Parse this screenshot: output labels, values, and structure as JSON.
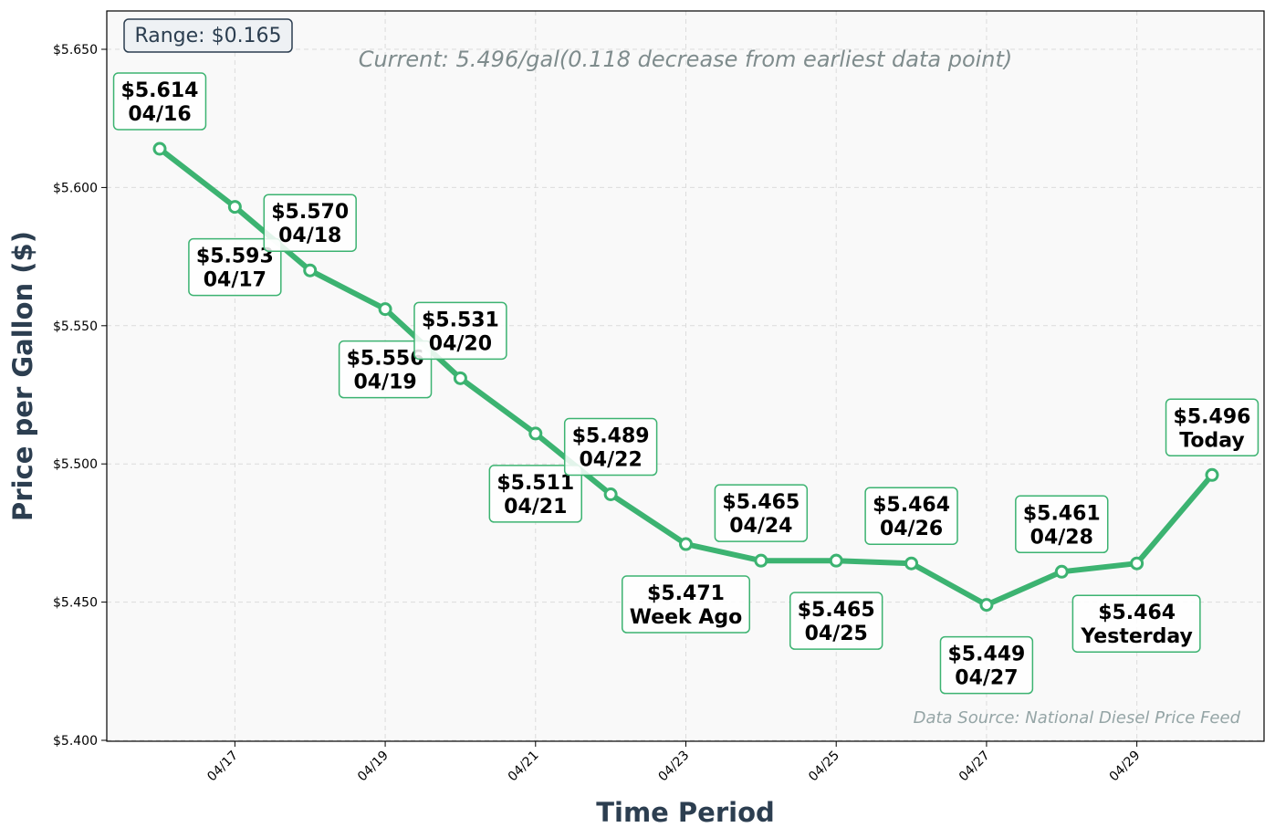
{
  "chart_data": {
    "type": "line",
    "xlabel": "Time Period",
    "ylabel": "Price per Gallon ($)",
    "ylim": [
      5.4,
      5.65
    ],
    "yticks": [
      "$5.400",
      "$5.450",
      "$5.500",
      "$5.550",
      "$5.600",
      "$5.650"
    ],
    "ytick_values": [
      5.4,
      5.45,
      5.5,
      5.55,
      5.6,
      5.65
    ],
    "xticks": [
      "04/17",
      "04/19",
      "04/21",
      "04/23",
      "04/25",
      "04/27",
      "04/29"
    ],
    "xtick_days": [
      17,
      19,
      21,
      23,
      25,
      27,
      29
    ],
    "grid": true,
    "line_color": "#3cb371",
    "points": [
      {
        "day": 16,
        "value": 5.614,
        "price_label": "$5.614",
        "date_label": "04/16",
        "label_pos": "above"
      },
      {
        "day": 17,
        "value": 5.593,
        "price_label": "$5.593",
        "date_label": "04/17",
        "label_pos": "below"
      },
      {
        "day": 18,
        "value": 5.57,
        "price_label": "$5.570",
        "date_label": "04/18",
        "label_pos": "above"
      },
      {
        "day": 19,
        "value": 5.556,
        "price_label": "$5.556",
        "date_label": "04/19",
        "label_pos": "below"
      },
      {
        "day": 20,
        "value": 5.531,
        "price_label": "$5.531",
        "date_label": "04/20",
        "label_pos": "above"
      },
      {
        "day": 21,
        "value": 5.511,
        "price_label": "$5.511",
        "date_label": "04/21",
        "label_pos": "below"
      },
      {
        "day": 22,
        "value": 5.489,
        "price_label": "$5.489",
        "date_label": "04/22",
        "label_pos": "above"
      },
      {
        "day": 23,
        "value": 5.471,
        "price_label": "$5.471",
        "date_label": "Week Ago",
        "label_pos": "below"
      },
      {
        "day": 24,
        "value": 5.465,
        "price_label": "$5.465",
        "date_label": "04/24",
        "label_pos": "above"
      },
      {
        "day": 25,
        "value": 5.465,
        "price_label": "$5.465",
        "date_label": "04/25",
        "label_pos": "below"
      },
      {
        "day": 26,
        "value": 5.464,
        "price_label": "$5.464",
        "date_label": "04/26",
        "label_pos": "above"
      },
      {
        "day": 27,
        "value": 5.449,
        "price_label": "$5.449",
        "date_label": "04/27",
        "label_pos": "below"
      },
      {
        "day": 28,
        "value": 5.461,
        "price_label": "$5.461",
        "date_label": "04/28",
        "label_pos": "above"
      },
      {
        "day": 29,
        "value": 5.464,
        "price_label": "$5.464",
        "date_label": "Yesterday",
        "label_pos": "below"
      },
      {
        "day": 30,
        "value": 5.496,
        "price_label": "$5.496",
        "date_label": "Today",
        "label_pos": "above"
      }
    ],
    "annotations": {
      "range": "Range: $0.165",
      "current": "Current: 5.496/gal(0.118 decrease from earliest data point)",
      "source": "Data Source: National Diesel Price Feed"
    }
  }
}
